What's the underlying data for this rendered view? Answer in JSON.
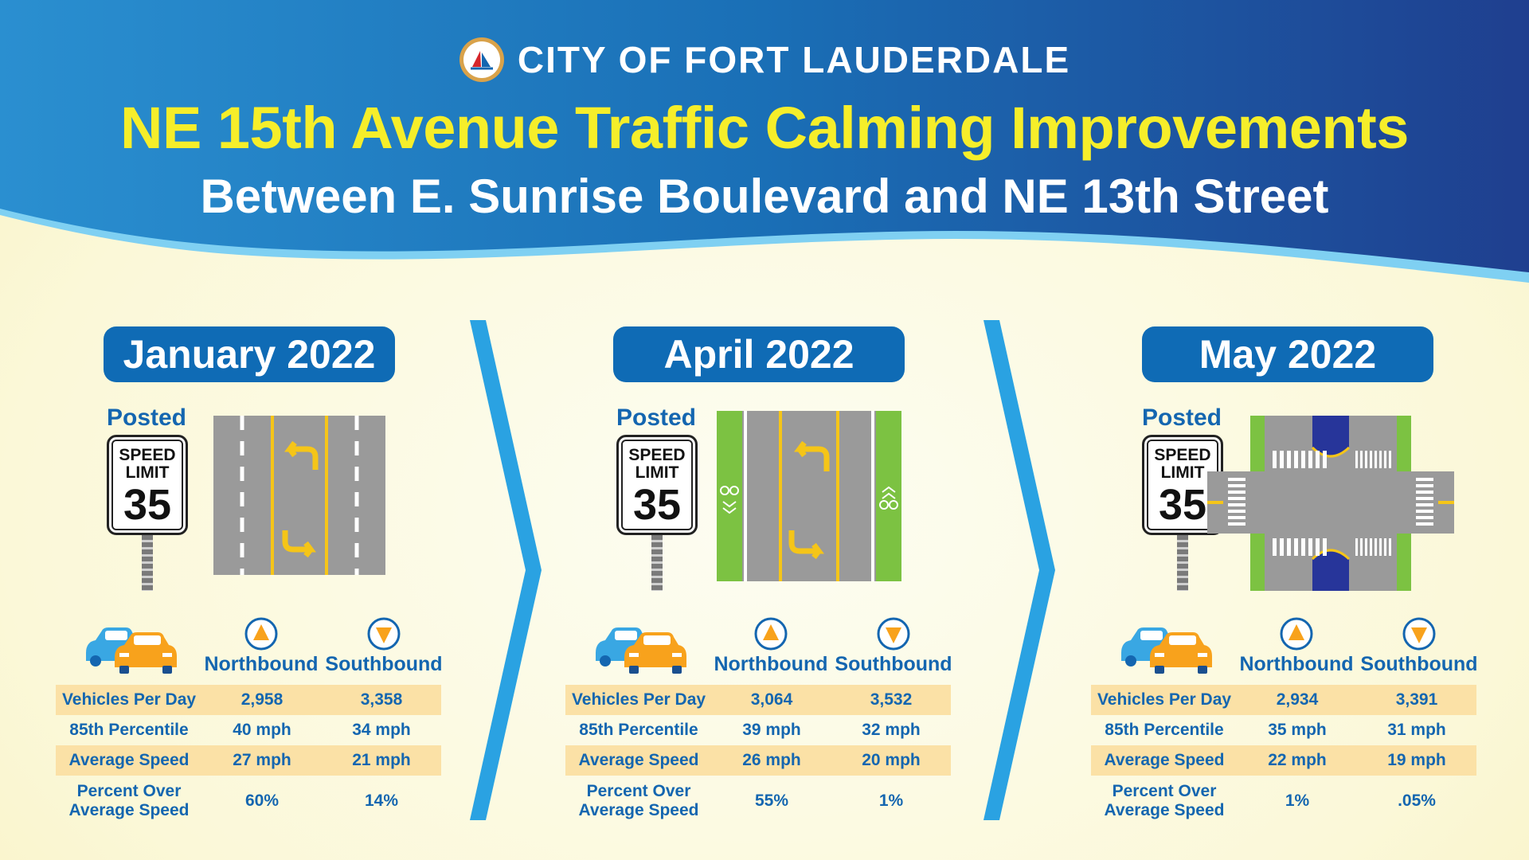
{
  "header": {
    "city": "CITY OF FORT LAUDERDALE",
    "title": "NE 15th Avenue Traffic Calming Improvements",
    "subtitle": "Between E. Sunrise Boulevard and NE 13th Street"
  },
  "colors": {
    "banner_dark": "#1f3f8f",
    "banner_light": "#2a8fd0",
    "title_yellow": "#f6ee2a",
    "accent_blue": "#1466b0",
    "row_shade": "#fbe1a6",
    "chevron_blue": "#2aa2e2"
  },
  "icons": [
    "city-seal-icon",
    "speed-limit-sign-icon",
    "cars-icon",
    "northbound-arrow-icon",
    "southbound-arrow-icon",
    "chevron-right-icon"
  ],
  "panels": [
    {
      "period": "January 2022",
      "sign": {
        "posted": "Posted",
        "line1": "SPEED",
        "line2": "LIMIT",
        "limit": "35"
      },
      "directions": {
        "north": "Northbound",
        "south": "Southbound"
      },
      "rows": [
        {
          "label": "Vehicles Per Day",
          "north": "2,958",
          "south": "3,358"
        },
        {
          "label": "85th Percentile",
          "north": "40 mph",
          "south": "34 mph"
        },
        {
          "label": "Average Speed",
          "north": "27 mph",
          "south": "21 mph"
        },
        {
          "label_line1": "Percent Over",
          "label_line2": "Average Speed",
          "north": "60%",
          "south": "14%"
        }
      ]
    },
    {
      "period": "April 2022",
      "sign": {
        "posted": "Posted",
        "line1": "SPEED",
        "line2": "LIMIT",
        "limit": "35"
      },
      "directions": {
        "north": "Northbound",
        "south": "Southbound"
      },
      "rows": [
        {
          "label": "Vehicles Per Day",
          "north": "3,064",
          "south": "3,532"
        },
        {
          "label": "85th Percentile",
          "north": "39 mph",
          "south": "32 mph"
        },
        {
          "label": "Average Speed",
          "north": "26 mph",
          "south": "20 mph"
        },
        {
          "label_line1": "Percent Over",
          "label_line2": "Average Speed",
          "north": "55%",
          "south": "1%"
        }
      ]
    },
    {
      "period": "May 2022",
      "sign": {
        "posted": "Posted",
        "line1": "SPEED",
        "line2": "LIMIT",
        "limit": "35"
      },
      "directions": {
        "north": "Northbound",
        "south": "Southbound"
      },
      "rows": [
        {
          "label": "Vehicles Per Day",
          "north": "2,934",
          "south": "3,391"
        },
        {
          "label": "85th Percentile",
          "north": "35 mph",
          "south": "31 mph"
        },
        {
          "label": "Average Speed",
          "north": "22 mph",
          "south": "19 mph"
        },
        {
          "label_line1": "Percent Over",
          "label_line2": "Average Speed",
          "north": "1%",
          "south": ".05%"
        }
      ]
    }
  ]
}
